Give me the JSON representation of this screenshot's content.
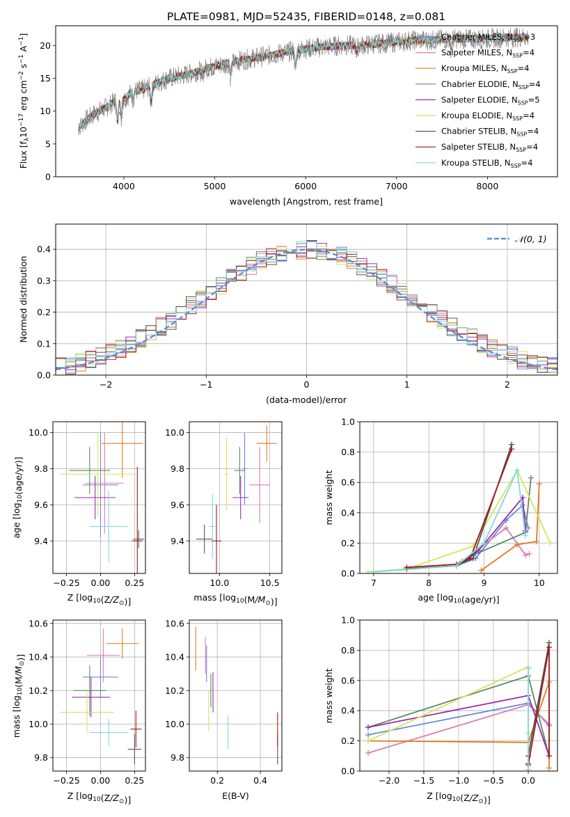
{
  "figure": {
    "title": "PLATE=0981, MJD=52435, FIBERID=0148, z=0.081"
  },
  "colors": {
    "Chabrier MILES": "#6688dd",
    "Salpeter MILES": "#e07ab0",
    "Kroupa MILES": "#e07a20",
    "Chabrier ELODIE": "#5a8a62",
    "Salpeter ELODIE": "#9a2aaa",
    "Kroupa ELODIE": "#d4e55a",
    "Chabrier STELIB": "#555555",
    "Salpeter STELIB": "#a01818",
    "Kroupa STELIB": "#7fd8dc",
    "gaussian": "#5b8fd6",
    "grid": "#b0b0b0"
  },
  "chart_data": [
    {
      "id": "spectrum",
      "type": "line",
      "title": "PLATE=0981, MJD=52435, FIBERID=0148, z=0.081",
      "xlabel": "wavelength [Angstrom, rest frame]",
      "ylabel": "Flux [f_λ 10^-17 erg cm^-2 s^-1 A^-1]",
      "xlim": [
        3250,
        8770
      ],
      "ylim": [
        0,
        23
      ],
      "xticks": [
        "4000",
        "5000",
        "6000",
        "7000",
        "8000"
      ],
      "yticks": [
        "0",
        "5",
        "10",
        "15",
        "20"
      ],
      "grid": false,
      "legend_position": "right",
      "legend": [
        {
          "label": "Chabrier MILES",
          "nssp": "3"
        },
        {
          "label": "Salpeter MILES",
          "nssp": "4"
        },
        {
          "label": "Kroupa MILES",
          "nssp": "4"
        },
        {
          "label": "Chabrier ELODIE",
          "nssp": "4"
        },
        {
          "label": "Salpeter ELODIE",
          "nssp": "5"
        },
        {
          "label": "Kroupa ELODIE",
          "nssp": "4"
        },
        {
          "label": "Chabrier STELIB",
          "nssp": "4"
        },
        {
          "label": "Salpeter STELIB",
          "nssp": "4"
        },
        {
          "label": "Kroupa STELIB",
          "nssp": "4"
        }
      ],
      "continuum_anchors": [
        [
          3500,
          7.5
        ],
        [
          3600,
          8.8
        ],
        [
          3700,
          9.8
        ],
        [
          3800,
          10.5
        ],
        [
          3900,
          11.5
        ],
        [
          4000,
          11.8
        ],
        [
          4100,
          13
        ],
        [
          4200,
          13.2
        ],
        [
          4300,
          13.8
        ],
        [
          4400,
          14.5
        ],
        [
          4500,
          15
        ],
        [
          4600,
          15.3
        ],
        [
          4700,
          15.6
        ],
        [
          4800,
          16
        ],
        [
          4900,
          16.5
        ],
        [
          5000,
          16.8
        ],
        [
          5200,
          17.5
        ],
        [
          5400,
          18
        ],
        [
          5600,
          18.5
        ],
        [
          5800,
          19
        ],
        [
          6000,
          19.5
        ],
        [
          6200,
          19.8
        ],
        [
          6400,
          20
        ],
        [
          6600,
          20
        ],
        [
          6800,
          20.3
        ],
        [
          7000,
          20.5
        ],
        [
          7200,
          20.8
        ],
        [
          7400,
          20.8
        ],
        [
          7600,
          21
        ],
        [
          7800,
          21
        ],
        [
          8000,
          21
        ],
        [
          8200,
          21.2
        ],
        [
          8400,
          21.3
        ]
      ],
      "absorption_features": [
        [
          3930,
          3.5
        ],
        [
          3970,
          3.0
        ],
        [
          4102,
          1.2
        ],
        [
          4300,
          2.5
        ],
        [
          4861,
          1.0
        ],
        [
          5175,
          2.5
        ],
        [
          5890,
          3.0
        ],
        [
          6563,
          1.0
        ],
        [
          7600,
          1.5
        ]
      ]
    },
    {
      "id": "residuals",
      "type": "histogram",
      "xlabel": "(data-model)/error",
      "ylabel": "Normed distribution",
      "xlim": [
        -2.5,
        2.5
      ],
      "ylim": [
        0,
        0.48
      ],
      "xticks": [
        "−2",
        "−1",
        "0",
        "1",
        "2"
      ],
      "yticks": [
        "0.0",
        "0.1",
        "0.2",
        "0.3",
        "0.4"
      ],
      "grid": true,
      "legend_position": "top-right",
      "legend": [
        {
          "label": "𝒩(0, 1)"
        }
      ],
      "bin_width": 0.1,
      "series_order": [
        "Chabrier MILES",
        "Salpeter MILES",
        "Kroupa MILES",
        "Chabrier ELODIE",
        "Salpeter ELODIE",
        "Kroupa ELODIE",
        "Chabrier STELIB",
        "Salpeter STELIB",
        "Kroupa STELIB"
      ],
      "series_jitter_seed": [
        1,
        2,
        3,
        4,
        5,
        6,
        7,
        8,
        9
      ],
      "gaussian": {
        "mean": 0,
        "sigma": 1
      }
    },
    {
      "id": "age_vs_Z",
      "type": "errorbar",
      "xlabel": "Z [log10(Z/Z⊙)]",
      "ylabel": "age [log10(age/yr)]",
      "xlim": [
        -0.35,
        0.33
      ],
      "ylim": [
        9.22,
        10.06
      ],
      "xticks": [
        "−0.25",
        "0.00",
        "0.25"
      ],
      "yticks": [
        "9.4",
        "9.6",
        "9.8",
        "10.0"
      ],
      "grid": true,
      "points": [
        {
          "series": "Chabrier MILES",
          "x": 0.0,
          "xerr": 0.13,
          "y": 9.71,
          "yerr": 0.29
        },
        {
          "series": "Salpeter MILES",
          "x": 0.03,
          "xerr": 0.14,
          "y": 9.72,
          "yerr": 0.28
        },
        {
          "series": "Kroupa MILES",
          "x": 0.16,
          "xerr": 0.15,
          "y": 9.94,
          "yerr": 0.19
        },
        {
          "series": "Chabrier ELODIE",
          "x": -0.08,
          "xerr": 0.15,
          "y": 9.79,
          "yerr": 0.13
        },
        {
          "series": "Salpeter ELODIE",
          "x": -0.04,
          "xerr": 0.15,
          "y": 9.64,
          "yerr": 0.12
        },
        {
          "series": "Kroupa ELODIE",
          "x": -0.02,
          "xerr": 0.28,
          "y": 9.77,
          "yerr": 0.23
        },
        {
          "series": "Chabrier STELIB",
          "x": 0.28,
          "xerr": 0.04,
          "y": 9.41,
          "yerr": 0.05
        },
        {
          "series": "Salpeter STELIB",
          "x": 0.27,
          "xerr": 0.04,
          "y": 9.4,
          "yerr": 0.41
        },
        {
          "series": "Kroupa STELIB",
          "x": 0.06,
          "xerr": 0.14,
          "y": 9.48,
          "yerr": 0.2
        }
      ]
    },
    {
      "id": "age_vs_mass",
      "type": "errorbar",
      "xlabel": "mass [log10(M/M⊙)]",
      "ylabel": "",
      "xlim": [
        9.7,
        10.62
      ],
      "ylim": [
        9.22,
        10.06
      ],
      "xticks": [
        "10.0",
        "10.5"
      ],
      "yticks": [
        "9.4",
        "9.6",
        "9.8",
        "10.0"
      ],
      "grid": true,
      "points": [
        {
          "series": "Chabrier MILES",
          "x": 10.25,
          "xerr": 0.02,
          "y": 9.8,
          "yerr": 0.2
        },
        {
          "series": "Salpeter MILES",
          "x": 10.4,
          "xerr": 0.1,
          "y": 9.71,
          "yerr": 0.21
        },
        {
          "series": "Kroupa MILES",
          "x": 10.47,
          "xerr": 0.1,
          "y": 9.94,
          "yerr": 0.1
        },
        {
          "series": "Chabrier ELODIE",
          "x": 10.2,
          "xerr": 0.05,
          "y": 9.79,
          "yerr": 0.13
        },
        {
          "series": "Salpeter ELODIE",
          "x": 10.21,
          "xerr": 0.08,
          "y": 9.64,
          "yerr": 0.12
        },
        {
          "series": "Kroupa ELODIE",
          "x": 10.07,
          "xerr": 0.02,
          "y": 9.77,
          "yerr": 0.2
        },
        {
          "series": "Chabrier STELIB",
          "x": 9.85,
          "xerr": 0.08,
          "y": 9.41,
          "yerr": 0.08
        },
        {
          "series": "Salpeter STELIB",
          "x": 9.97,
          "xerr": 0.05,
          "y": 9.4,
          "yerr": 0.2
        },
        {
          "series": "Kroupa STELIB",
          "x": 9.93,
          "xerr": 0.03,
          "y": 9.48,
          "yerr": 0.18
        }
      ]
    },
    {
      "id": "weight_vs_age",
      "type": "line",
      "xlabel": "age [log10(age/yr)]",
      "ylabel": "mass weight",
      "xlim": [
        6.75,
        10.33
      ],
      "ylim": [
        0,
        1
      ],
      "xticks": [
        "7",
        "8",
        "9",
        "10"
      ],
      "yticks": [
        "0.0",
        "0.2",
        "0.4",
        "0.6",
        "0.8",
        "1.0"
      ],
      "grid": true,
      "series": [
        {
          "name": "Chabrier MILES",
          "x": [
            8.5,
            8.85,
            9.4,
            9.7,
            9.8
          ],
          "y": [
            0.05,
            0.1,
            0.35,
            0.45,
            0.3
          ]
        },
        {
          "name": "Salpeter MILES",
          "x": [
            8.6,
            9.4,
            9.75,
            9.82
          ],
          "y": [
            0.08,
            0.3,
            0.12,
            0.13
          ]
        },
        {
          "name": "Kroupa MILES",
          "x": [
            8.95,
            9.6,
            9.95,
            10.0
          ],
          "y": [
            0.02,
            0.19,
            0.21,
            0.59
          ]
        },
        {
          "name": "Chabrier ELODIE",
          "x": [
            8.5,
            8.8,
            9.75,
            9.85
          ],
          "y": [
            0.06,
            0.12,
            0.27,
            0.63
          ]
        },
        {
          "name": "Salpeter ELODIE",
          "x": [
            7.6,
            8.5,
            8.9,
            9.7,
            9.75
          ],
          "y": [
            0.03,
            0.05,
            0.15,
            0.5,
            0.28
          ]
        },
        {
          "name": "Kroupa ELODIE",
          "x": [
            6.9,
            7.6,
            8.8,
            9.6,
            10.2
          ],
          "y": [
            0.01,
            0.03,
            0.18,
            0.68,
            0.2
          ]
        },
        {
          "name": "Chabrier STELIB",
          "x": [
            7.6,
            8.5,
            8.8,
            9.5
          ],
          "y": [
            0.03,
            0.05,
            0.1,
            0.85
          ]
        },
        {
          "name": "Salpeter STELIB",
          "x": [
            7.6,
            8.5,
            8.75,
            9.5
          ],
          "y": [
            0.04,
            0.06,
            0.1,
            0.82
          ]
        },
        {
          "name": "Kroupa STELIB",
          "x": [
            7.0,
            8.5,
            9.0,
            9.6,
            9.75
          ],
          "y": [
            0.01,
            0.05,
            0.2,
            0.68,
            0.25
          ]
        }
      ]
    },
    {
      "id": "mass_vs_Z",
      "type": "errorbar",
      "xlabel": "Z [log10(Z/Z⊙)]",
      "ylabel": "mass [log10(M/M⊙)]",
      "xlim": [
        -0.35,
        0.33
      ],
      "ylim": [
        9.72,
        10.62
      ],
      "xticks": [
        "−0.25",
        "0.00",
        "0.25"
      ],
      "yticks": [
        "9.8",
        "10.0",
        "10.2",
        "10.4",
        "10.6"
      ],
      "grid": true,
      "points": [
        {
          "series": "Chabrier MILES",
          "x": 0.0,
          "xerr": 0.13,
          "y": 10.28,
          "yerr": 0.12
        },
        {
          "series": "Salpeter MILES",
          "x": 0.02,
          "xerr": 0.12,
          "y": 10.41,
          "yerr": 0.16
        },
        {
          "series": "Kroupa MILES",
          "x": 0.16,
          "xerr": 0.12,
          "y": 10.48,
          "yerr": 0.09
        },
        {
          "series": "Chabrier ELODIE",
          "x": -0.08,
          "xerr": 0.12,
          "y": 10.2,
          "yerr": 0.15
        },
        {
          "series": "Salpeter ELODIE",
          "x": -0.07,
          "xerr": 0.14,
          "y": 10.16,
          "yerr": 0.12
        },
        {
          "series": "Kroupa ELODIE",
          "x": -0.1,
          "xerr": 0.2,
          "y": 10.07,
          "yerr": 0.12
        },
        {
          "series": "Chabrier STELIB",
          "x": 0.25,
          "xerr": 0.05,
          "y": 9.85,
          "yerr": 0.09
        },
        {
          "series": "Salpeter STELIB",
          "x": 0.26,
          "xerr": 0.04,
          "y": 9.97,
          "yerr": 0.11
        },
        {
          "series": "Kroupa STELIB",
          "x": 0.06,
          "xerr": 0.14,
          "y": 9.95,
          "yerr": 0.08
        }
      ]
    },
    {
      "id": "mass_vs_ebv",
      "type": "errorbar",
      "xlabel": "E(B-V)",
      "ylabel": "",
      "xlim": [
        0.07,
        0.5
      ],
      "ylim": [
        9.72,
        10.62
      ],
      "xticks": [
        "0.2",
        "0.4"
      ],
      "yticks": [
        "9.8",
        "10.0",
        "10.2",
        "10.4",
        "10.6"
      ],
      "grid": true,
      "points": [
        {
          "series": "Chabrier MILES",
          "x": 0.15,
          "xerr": 0.0,
          "y": 10.36,
          "yerr": 0.11
        },
        {
          "series": "Salpeter MILES",
          "x": 0.145,
          "xerr": 0.0,
          "y": 10.41,
          "yerr": 0.11
        },
        {
          "series": "Kroupa MILES",
          "x": 0.1,
          "xerr": 0.0,
          "y": 10.45,
          "yerr": 0.13
        },
        {
          "series": "Chabrier ELODIE",
          "x": 0.17,
          "xerr": 0.0,
          "y": 10.2,
          "yerr": 0.1
        },
        {
          "series": "Salpeter ELODIE",
          "x": 0.18,
          "xerr": 0.0,
          "y": 10.19,
          "yerr": 0.12
        },
        {
          "series": "Kroupa ELODIE",
          "x": 0.16,
          "xerr": 0.0,
          "y": 10.08,
          "yerr": 0.12
        },
        {
          "series": "Chabrier STELIB",
          "x": 0.48,
          "xerr": 0.0,
          "y": 9.85,
          "yerr": 0.09
        },
        {
          "series": "Salpeter STELIB",
          "x": 0.48,
          "xerr": 0.0,
          "y": 9.97,
          "yerr": 0.1
        },
        {
          "series": "Kroupa STELIB",
          "x": 0.25,
          "xerr": 0.0,
          "y": 9.95,
          "yerr": 0.1
        }
      ]
    },
    {
      "id": "weight_vs_Z",
      "type": "line",
      "xlabel": "Z [log10(Z/Z⊙)]",
      "ylabel": "mass weight",
      "xlim": [
        -2.42,
        0.42
      ],
      "ylim": [
        0,
        1
      ],
      "xticks": [
        "−2.0",
        "−1.5",
        "−1.0",
        "−0.5",
        "0.0"
      ],
      "yticks": [
        "0.0",
        "0.2",
        "0.4",
        "0.6",
        "0.8",
        "1.0"
      ],
      "grid": true,
      "series": [
        {
          "name": "Chabrier MILES",
          "x": [
            -2.3,
            0.0,
            0.3
          ],
          "y": [
            0.24,
            0.45,
            0.3
          ]
        },
        {
          "name": "Salpeter MILES",
          "x": [
            -2.3,
            0.0,
            0.3
          ],
          "y": [
            0.12,
            0.44,
            0.31
          ]
        },
        {
          "name": "Kroupa MILES",
          "x": [
            -2.3,
            0.0,
            0.3,
            0.3
          ],
          "y": [
            0.2,
            0.19,
            0.59,
            0.02
          ]
        },
        {
          "name": "Chabrier ELODIE",
          "x": [
            -2.3,
            0.0,
            0.3
          ],
          "y": [
            0.29,
            0.63,
            0.1
          ]
        },
        {
          "name": "Salpeter ELODIE",
          "x": [
            -2.3,
            0.0,
            0.3
          ],
          "y": [
            0.29,
            0.5,
            0.1
          ]
        },
        {
          "name": "Kroupa ELODIE",
          "x": [
            -2.3,
            0.0,
            0.0
          ],
          "y": [
            0.2,
            0.69,
            0.1
          ]
        },
        {
          "name": "Chabrier STELIB",
          "x": [
            0.0,
            0.0,
            0.3
          ],
          "y": [
            0.05,
            0.1,
            0.85
          ]
        },
        {
          "name": "Salpeter STELIB",
          "x": [
            0.0,
            0.3,
            0.3
          ],
          "y": [
            0.04,
            0.82,
            0.1
          ]
        },
        {
          "name": "Kroupa STELIB",
          "x": [
            0.0,
            0.0,
            0.0
          ],
          "y": [
            0.01,
            0.68,
            0.25
          ]
        }
      ]
    }
  ]
}
